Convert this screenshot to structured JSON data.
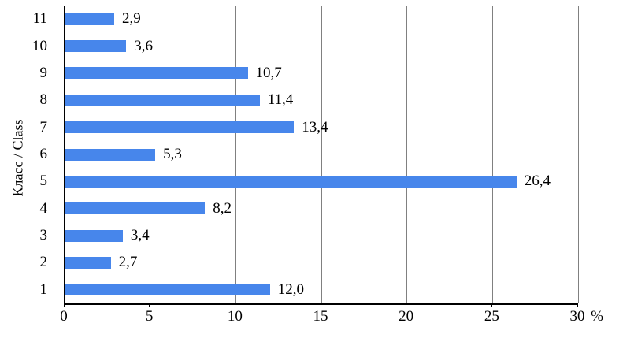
{
  "chart_data": {
    "type": "bar",
    "orientation": "horizontal",
    "title": "",
    "ylabel": "Класс / Class",
    "xlabel": "%",
    "categories": [
      "11",
      "10",
      "9",
      "8",
      "7",
      "6",
      "5",
      "4",
      "3",
      "2",
      "1"
    ],
    "values": [
      2.9,
      3.6,
      10.7,
      11.4,
      13.4,
      5.3,
      26.4,
      8.2,
      3.4,
      2.7,
      12.0
    ],
    "value_labels": [
      "2,9",
      "3,6",
      "10,7",
      "11,4",
      "13,4",
      "5,3",
      "26,4",
      "8,2",
      "3,4",
      "2,7",
      "12,0"
    ],
    "xlim": [
      0,
      30
    ],
    "xticks": [
      0,
      5,
      10,
      15,
      20,
      25,
      30
    ],
    "grid": true,
    "legend": "none",
    "bar_color": "#4786EB",
    "gridline_color": "#808080",
    "axis_color": "#000000",
    "label_color": "#000000",
    "background_color": "#ffffff"
  }
}
